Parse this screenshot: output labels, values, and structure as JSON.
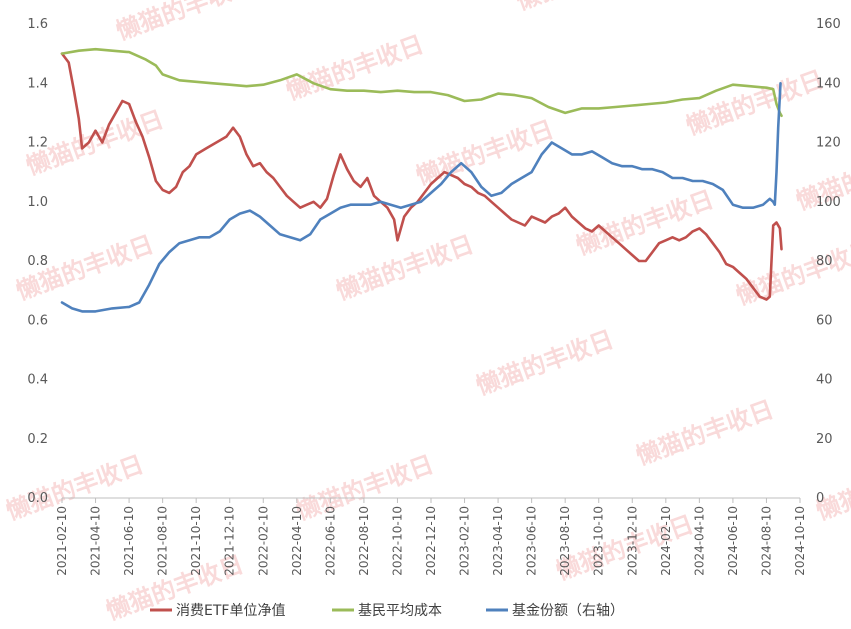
{
  "chart_data": {
    "type": "line",
    "y_left": {
      "ticks": [
        "0.0",
        "0.2",
        "0.4",
        "0.6",
        "0.8",
        "1.0",
        "1.2",
        "1.4",
        "1.6"
      ],
      "range": [
        0,
        1.6
      ]
    },
    "y_right": {
      "ticks": [
        "0",
        "20",
        "40",
        "60",
        "80",
        "100",
        "120",
        "140",
        "160"
      ],
      "range": [
        0,
        160
      ]
    },
    "x_ticks": [
      "2021-02-10",
      "2021-04-10",
      "2021-06-10",
      "2021-08-10",
      "2021-10-10",
      "2021-12-10",
      "2022-02-10",
      "2022-04-10",
      "2022-06-10",
      "2022-08-10",
      "2022-10-10",
      "2022-12-10",
      "2023-02-10",
      "2023-04-10",
      "2023-06-10",
      "2023-08-10",
      "2023-10-10",
      "2023-12-10",
      "2024-02-10",
      "2024-04-10",
      "2024-06-10",
      "2024-08-10",
      "2024-10-10"
    ],
    "series": [
      {
        "name": "消费ETF单位净值",
        "axis": "left",
        "color": "#c0504d",
        "points": [
          [
            0,
            1.5
          ],
          [
            0.2,
            1.47
          ],
          [
            0.35,
            1.38
          ],
          [
            0.5,
            1.28
          ],
          [
            0.6,
            1.18
          ],
          [
            0.8,
            1.2
          ],
          [
            1.0,
            1.24
          ],
          [
            1.2,
            1.2
          ],
          [
            1.4,
            1.26
          ],
          [
            1.6,
            1.3
          ],
          [
            1.8,
            1.34
          ],
          [
            2.0,
            1.33
          ],
          [
            2.2,
            1.27
          ],
          [
            2.4,
            1.22
          ],
          [
            2.6,
            1.15
          ],
          [
            2.8,
            1.07
          ],
          [
            3.0,
            1.04
          ],
          [
            3.2,
            1.03
          ],
          [
            3.4,
            1.05
          ],
          [
            3.6,
            1.1
          ],
          [
            3.8,
            1.12
          ],
          [
            4.0,
            1.16
          ],
          [
            4.3,
            1.18
          ],
          [
            4.6,
            1.2
          ],
          [
            4.9,
            1.22
          ],
          [
            5.1,
            1.25
          ],
          [
            5.3,
            1.22
          ],
          [
            5.5,
            1.16
          ],
          [
            5.7,
            1.12
          ],
          [
            5.9,
            1.13
          ],
          [
            6.1,
            1.1
          ],
          [
            6.3,
            1.08
          ],
          [
            6.5,
            1.05
          ],
          [
            6.7,
            1.02
          ],
          [
            6.9,
            1.0
          ],
          [
            7.1,
            0.98
          ],
          [
            7.3,
            0.99
          ],
          [
            7.5,
            1.0
          ],
          [
            7.7,
            0.98
          ],
          [
            7.9,
            1.01
          ],
          [
            8.1,
            1.09
          ],
          [
            8.3,
            1.16
          ],
          [
            8.5,
            1.11
          ],
          [
            8.7,
            1.07
          ],
          [
            8.9,
            1.05
          ],
          [
            9.1,
            1.08
          ],
          [
            9.3,
            1.02
          ],
          [
            9.5,
            1.0
          ],
          [
            9.7,
            0.98
          ],
          [
            9.9,
            0.94
          ],
          [
            10.0,
            0.87
          ],
          [
            10.2,
            0.95
          ],
          [
            10.4,
            0.98
          ],
          [
            10.6,
            1.0
          ],
          [
            10.8,
            1.03
          ],
          [
            11.0,
            1.06
          ],
          [
            11.2,
            1.08
          ],
          [
            11.4,
            1.1
          ],
          [
            11.6,
            1.09
          ],
          [
            11.8,
            1.08
          ],
          [
            12.0,
            1.06
          ],
          [
            12.2,
            1.05
          ],
          [
            12.4,
            1.03
          ],
          [
            12.6,
            1.02
          ],
          [
            12.8,
            1.0
          ],
          [
            13.0,
            0.98
          ],
          [
            13.2,
            0.96
          ],
          [
            13.4,
            0.94
          ],
          [
            13.6,
            0.93
          ],
          [
            13.8,
            0.92
          ],
          [
            14.0,
            0.95
          ],
          [
            14.2,
            0.94
          ],
          [
            14.4,
            0.93
          ],
          [
            14.6,
            0.95
          ],
          [
            14.8,
            0.96
          ],
          [
            15.0,
            0.98
          ],
          [
            15.2,
            0.95
          ],
          [
            15.4,
            0.93
          ],
          [
            15.6,
            0.91
          ],
          [
            15.8,
            0.9
          ],
          [
            16.0,
            0.92
          ],
          [
            16.2,
            0.9
          ],
          [
            16.4,
            0.88
          ],
          [
            16.6,
            0.86
          ],
          [
            16.8,
            0.84
          ],
          [
            17.0,
            0.82
          ],
          [
            17.2,
            0.8
          ],
          [
            17.4,
            0.8
          ],
          [
            17.6,
            0.83
          ],
          [
            17.8,
            0.86
          ],
          [
            18.0,
            0.87
          ],
          [
            18.2,
            0.88
          ],
          [
            18.4,
            0.87
          ],
          [
            18.6,
            0.88
          ],
          [
            18.8,
            0.9
          ],
          [
            19.0,
            0.91
          ],
          [
            19.2,
            0.89
          ],
          [
            19.4,
            0.86
          ],
          [
            19.6,
            0.83
          ],
          [
            19.8,
            0.79
          ],
          [
            20.0,
            0.78
          ],
          [
            20.2,
            0.76
          ],
          [
            20.4,
            0.74
          ],
          [
            20.6,
            0.71
          ],
          [
            20.8,
            0.68
          ],
          [
            21.0,
            0.67
          ],
          [
            21.1,
            0.68
          ],
          [
            21.2,
            0.92
          ],
          [
            21.3,
            0.93
          ],
          [
            21.4,
            0.91
          ],
          [
            21.45,
            0.84
          ]
        ]
      },
      {
        "name": "基民平均成本",
        "axis": "left",
        "color": "#9bbb59",
        "points": [
          [
            0,
            1.5
          ],
          [
            0.5,
            1.51
          ],
          [
            1.0,
            1.515
          ],
          [
            1.5,
            1.51
          ],
          [
            2.0,
            1.505
          ],
          [
            2.5,
            1.48
          ],
          [
            2.8,
            1.46
          ],
          [
            3.0,
            1.43
          ],
          [
            3.5,
            1.41
          ],
          [
            4.0,
            1.405
          ],
          [
            4.5,
            1.4
          ],
          [
            5.0,
            1.395
          ],
          [
            5.5,
            1.39
          ],
          [
            6.0,
            1.395
          ],
          [
            6.5,
            1.41
          ],
          [
            7.0,
            1.43
          ],
          [
            7.5,
            1.4
          ],
          [
            8.0,
            1.38
          ],
          [
            8.5,
            1.375
          ],
          [
            9.0,
            1.375
          ],
          [
            9.5,
            1.37
          ],
          [
            10.0,
            1.375
          ],
          [
            10.5,
            1.37
          ],
          [
            11.0,
            1.37
          ],
          [
            11.5,
            1.36
          ],
          [
            12.0,
            1.34
          ],
          [
            12.5,
            1.345
          ],
          [
            13.0,
            1.365
          ],
          [
            13.5,
            1.36
          ],
          [
            14.0,
            1.35
          ],
          [
            14.5,
            1.32
          ],
          [
            15.0,
            1.3
          ],
          [
            15.5,
            1.315
          ],
          [
            16.0,
            1.315
          ],
          [
            16.5,
            1.32
          ],
          [
            17.0,
            1.325
          ],
          [
            17.5,
            1.33
          ],
          [
            18.0,
            1.335
          ],
          [
            18.5,
            1.345
          ],
          [
            19.0,
            1.35
          ],
          [
            19.5,
            1.375
          ],
          [
            20.0,
            1.395
          ],
          [
            20.5,
            1.39
          ],
          [
            21.0,
            1.385
          ],
          [
            21.2,
            1.38
          ],
          [
            21.3,
            1.33
          ],
          [
            21.4,
            1.3
          ],
          [
            21.45,
            1.29
          ]
        ]
      },
      {
        "name": "基金份额（右轴）",
        "axis": "right",
        "color": "#4f81bd",
        "points": [
          [
            0,
            66
          ],
          [
            0.3,
            64
          ],
          [
            0.6,
            63
          ],
          [
            1.0,
            63
          ],
          [
            1.5,
            64
          ],
          [
            2.0,
            64.5
          ],
          [
            2.3,
            66
          ],
          [
            2.6,
            72
          ],
          [
            2.9,
            79
          ],
          [
            3.2,
            83
          ],
          [
            3.5,
            86
          ],
          [
            3.8,
            87
          ],
          [
            4.1,
            88
          ],
          [
            4.4,
            88
          ],
          [
            4.7,
            90
          ],
          [
            5.0,
            94
          ],
          [
            5.3,
            96
          ],
          [
            5.6,
            97
          ],
          [
            5.9,
            95
          ],
          [
            6.2,
            92
          ],
          [
            6.5,
            89
          ],
          [
            6.8,
            88
          ],
          [
            7.1,
            87
          ],
          [
            7.4,
            89
          ],
          [
            7.7,
            94
          ],
          [
            8.0,
            96
          ],
          [
            8.3,
            98
          ],
          [
            8.6,
            99
          ],
          [
            8.9,
            99
          ],
          [
            9.2,
            99
          ],
          [
            9.5,
            100
          ],
          [
            9.8,
            99
          ],
          [
            10.1,
            98
          ],
          [
            10.4,
            99
          ],
          [
            10.7,
            100
          ],
          [
            11.0,
            103
          ],
          [
            11.3,
            106
          ],
          [
            11.6,
            110
          ],
          [
            11.9,
            113
          ],
          [
            12.2,
            110
          ],
          [
            12.5,
            105
          ],
          [
            12.8,
            102
          ],
          [
            13.1,
            103
          ],
          [
            13.4,
            106
          ],
          [
            13.7,
            108
          ],
          [
            14.0,
            110
          ],
          [
            14.3,
            116
          ],
          [
            14.6,
            120
          ],
          [
            14.9,
            118
          ],
          [
            15.2,
            116
          ],
          [
            15.5,
            116
          ],
          [
            15.8,
            117
          ],
          [
            16.1,
            115
          ],
          [
            16.4,
            113
          ],
          [
            16.7,
            112
          ],
          [
            17.0,
            112
          ],
          [
            17.3,
            111
          ],
          [
            17.6,
            111
          ],
          [
            17.9,
            110
          ],
          [
            18.2,
            108
          ],
          [
            18.5,
            108
          ],
          [
            18.8,
            107
          ],
          [
            19.1,
            107
          ],
          [
            19.4,
            106
          ],
          [
            19.7,
            104
          ],
          [
            20.0,
            99
          ],
          [
            20.3,
            98
          ],
          [
            20.6,
            98
          ],
          [
            20.9,
            99
          ],
          [
            21.1,
            101
          ],
          [
            21.2,
            100
          ],
          [
            21.25,
            99
          ],
          [
            21.3,
            110
          ],
          [
            21.35,
            125
          ],
          [
            21.42,
            140
          ]
        ]
      }
    ],
    "legend_position": "bottom",
    "grid": false
  },
  "watermark": "懒猫的丰收日"
}
